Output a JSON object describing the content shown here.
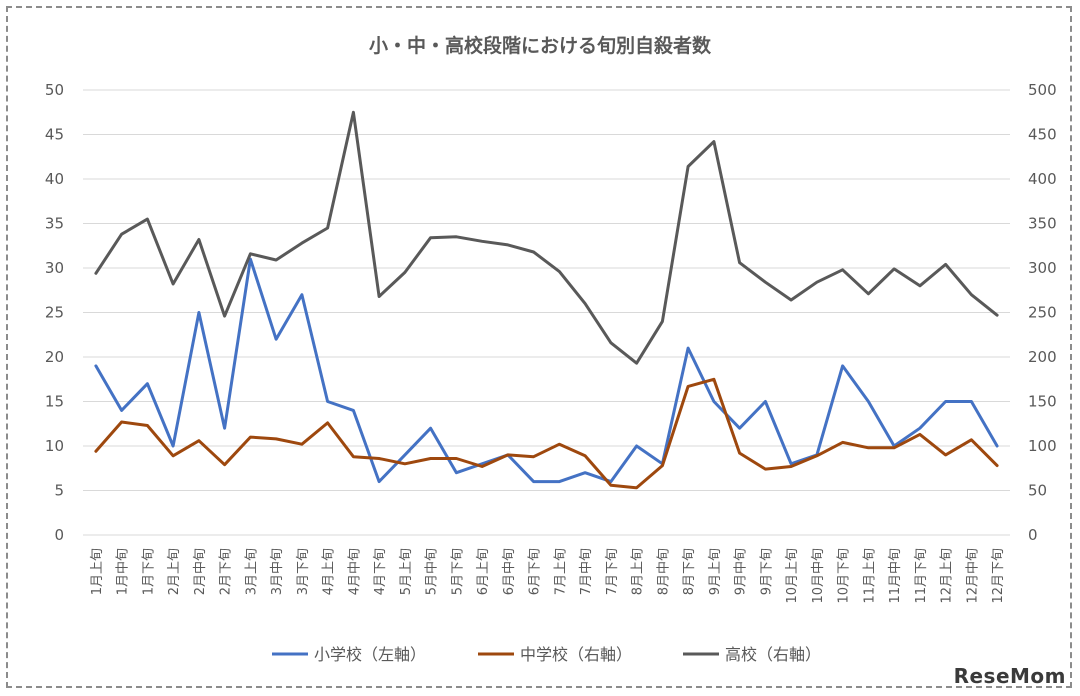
{
  "chart_data": {
    "type": "line",
    "title": "小・中・高校段階における旬別自殺者数",
    "categories": [
      "1月上旬",
      "1月中旬",
      "1月下旬",
      "2月上旬",
      "2月中旬",
      "2月下旬",
      "3月上旬",
      "3月中旬",
      "3月下旬",
      "4月上旬",
      "4月中旬",
      "4月下旬",
      "5月上旬",
      "5月中旬",
      "5月下旬",
      "6月上旬",
      "6月中旬",
      "6月下旬",
      "7月上旬",
      "7月中旬",
      "7月下旬",
      "8月上旬",
      "8月中旬",
      "8月下旬",
      "9月上旬",
      "9月中旬",
      "9月下旬",
      "10月上旬",
      "10月中旬",
      "10月下旬",
      "11月上旬",
      "11月中旬",
      "11月下旬",
      "12月上旬",
      "12月中旬",
      "12月下旬"
    ],
    "y_left": {
      "min": 0,
      "max": 50,
      "step": 5,
      "ticks": [
        "0",
        "5",
        "10",
        "15",
        "20",
        "25",
        "30",
        "35",
        "40",
        "45",
        "50"
      ]
    },
    "y_right": {
      "min": 0,
      "max": 500,
      "step": 50,
      "ticks": [
        "0",
        "50",
        "100",
        "150",
        "200",
        "250",
        "300",
        "350",
        "400",
        "450",
        "500"
      ]
    },
    "grid": true,
    "legend_position": "bottom",
    "series": [
      {
        "name": "小学校（左軸）",
        "axis": "left",
        "color": "#4472c4",
        "values": [
          19,
          14,
          17,
          10,
          25,
          12,
          31,
          22,
          27,
          15,
          14,
          6,
          9,
          12,
          7,
          8,
          9,
          6,
          6,
          7,
          6,
          10,
          8,
          21,
          15,
          12,
          15,
          8,
          9,
          19,
          15,
          10,
          12,
          15,
          15,
          10
        ]
      },
      {
        "name": "中学校（右軸）",
        "axis": "right",
        "color": "#9e480e",
        "values": [
          94,
          127,
          123,
          89,
          106,
          79,
          110,
          108,
          102,
          126,
          88,
          86,
          80,
          86,
          86,
          77,
          90,
          88,
          102,
          89,
          56,
          53,
          78,
          167,
          175,
          92,
          74,
          77,
          89,
          104,
          98,
          98,
          113,
          90,
          107,
          78
        ]
      },
      {
        "name": "高校（右軸）",
        "axis": "right",
        "color": "#595959",
        "values": [
          294,
          338,
          355,
          282,
          332,
          246,
          316,
          309,
          328,
          345,
          475,
          268,
          295,
          334,
          335,
          330,
          326,
          318,
          296,
          260,
          216,
          193,
          240,
          414,
          442,
          306,
          284,
          264,
          284,
          298,
          271,
          299,
          280,
          304,
          270,
          247
        ]
      }
    ]
  },
  "watermark": "ReseMom"
}
